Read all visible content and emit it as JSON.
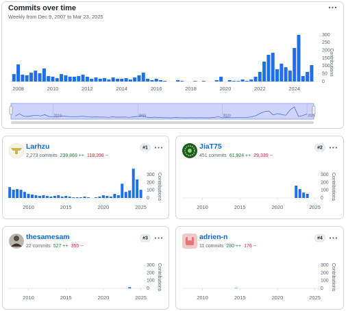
{
  "chart_data": [
    {
      "type": "bar",
      "title": "Commits over time",
      "subtitle": "Weekly from Dec 9, 2007 to Mar 23, 2025",
      "y_label": "Contributions",
      "color": "#1f6feb",
      "grid": false,
      "x": [
        2007.75,
        2008,
        2008.25,
        2008.5,
        2008.75,
        2009,
        2009.25,
        2009.5,
        2009.75,
        2010,
        2010.25,
        2010.5,
        2010.75,
        2011,
        2011.25,
        2011.5,
        2011.75,
        2012,
        2012.25,
        2012.5,
        2012.75,
        2013,
        2013.25,
        2013.5,
        2013.75,
        2014,
        2014.25,
        2014.5,
        2014.75,
        2015,
        2015.25,
        2015.5,
        2015.75,
        2016,
        2016.25,
        2016.5,
        2016.75,
        2017,
        2017.25,
        2017.5,
        2017.75,
        2018,
        2018.25,
        2018.5,
        2018.75,
        2019,
        2019.25,
        2019.5,
        2019.75,
        2020,
        2020.25,
        2020.5,
        2020.75,
        2021,
        2021.25,
        2021.5,
        2021.75,
        2022,
        2022.25,
        2022.5,
        2022.75,
        2023,
        2023.25,
        2023.5,
        2023.75,
        2024,
        2024.25,
        2024.5,
        2024.75,
        2025
      ],
      "values": [
        48,
        110,
        44,
        40,
        57,
        70,
        53,
        84,
        35,
        31,
        22,
        48,
        40,
        31,
        31,
        35,
        44,
        31,
        18,
        26,
        18,
        22,
        13,
        26,
        18,
        18,
        22,
        13,
        26,
        40,
        57,
        18,
        9,
        18,
        9,
        4,
        0,
        0,
        9,
        4,
        0,
        0,
        4,
        0,
        4,
        0,
        0,
        9,
        31,
        0,
        9,
        4,
        4,
        13,
        4,
        13,
        31,
        62,
        128,
        172,
        185,
        79,
        115,
        92,
        70,
        216,
        300,
        35,
        62,
        106
      ],
      "xlim": [
        2007.5,
        2025.4
      ],
      "ylim": [
        0,
        300
      ],
      "xticks": [
        2008,
        2010,
        2012,
        2014,
        2016,
        2018,
        2020,
        2022,
        2024
      ],
      "yticks": [
        0,
        50,
        100,
        150,
        200,
        250,
        300
      ],
      "navigator_xticks": [
        2010,
        2015,
        2020,
        2025
      ]
    },
    {
      "type": "bar",
      "y_label": "Contributions",
      "color": "#1f6feb",
      "grid": false,
      "x": [
        2007.5,
        2008,
        2008.5,
        2009,
        2009.5,
        2010,
        2010.5,
        2011,
        2011.5,
        2012,
        2012.5,
        2013,
        2013.5,
        2014,
        2014.5,
        2015,
        2015.5,
        2016,
        2016.5,
        2017,
        2017.5,
        2018,
        2018.5,
        2019,
        2019.5,
        2020,
        2020.5,
        2021,
        2021.5,
        2022,
        2022.5,
        2023,
        2023.5,
        2024,
        2024.5,
        2025
      ],
      "values": [
        141,
        106,
        115,
        106,
        79,
        53,
        44,
        35,
        26,
        35,
        26,
        18,
        26,
        35,
        18,
        26,
        18,
        9,
        9,
        9,
        18,
        9,
        0,
        9,
        18,
        35,
        26,
        18,
        53,
        35,
        185,
        79,
        97,
        380,
        240,
        106
      ],
      "xlim": [
        2007.3,
        2025.4
      ],
      "ylim": [
        0,
        400
      ],
      "xticks": [
        2010,
        2015,
        2020,
        2025
      ],
      "yticks": [
        0,
        100,
        200,
        300
      ]
    },
    {
      "type": "bar",
      "y_label": "Contributions",
      "color": "#1f6feb",
      "grid": false,
      "x": [
        2022.5,
        2023,
        2023.5,
        2024
      ],
      "values": [
        160,
        115,
        70,
        53
      ],
      "xlim": [
        2007.3,
        2025.4
      ],
      "ylim": [
        0,
        400
      ],
      "xticks": [
        2010,
        2015,
        2020,
        2025
      ],
      "yticks": [
        0,
        100,
        200,
        300
      ]
    },
    {
      "type": "bar",
      "y_label": "Contributions",
      "color": "#1f6feb",
      "grid": false,
      "x": [
        2023.5
      ],
      "values": [
        15
      ],
      "xlim": [
        2007.3,
        2025.4
      ],
      "ylim": [
        0,
        400
      ],
      "xticks": [
        2010,
        2015,
        2020,
        2025
      ],
      "yticks": [
        0,
        100,
        200,
        300
      ]
    },
    {
      "type": "bar",
      "y_label": "Contributions",
      "color": "#1f6feb",
      "grid": false,
      "x": [
        2014.5
      ],
      "values": [
        4
      ],
      "xlim": [
        2007.3,
        2025.4
      ],
      "ylim": [
        0,
        400
      ],
      "xticks": [
        2010,
        2015,
        2020,
        2025
      ],
      "yticks": [
        0,
        100,
        200,
        300
      ]
    }
  ],
  "contributors": [
    {
      "rank": "#1",
      "name": "Larhzu",
      "commits": "2,273 commits",
      "additions": "239,869 ++",
      "deletions": "118,398 --"
    },
    {
      "rank": "#2",
      "name": "JiaT75",
      "commits": "451 commits",
      "additions": "61,924 ++",
      "deletions": "29,339 --"
    },
    {
      "rank": "#3",
      "name": "thesamesam",
      "commits": "22 commits",
      "additions": "527 ++",
      "deletions": "355 --"
    },
    {
      "rank": "#4",
      "name": "adrien-n",
      "commits": "11 commits",
      "additions": "280 ++",
      "deletions": "176 --"
    }
  ]
}
